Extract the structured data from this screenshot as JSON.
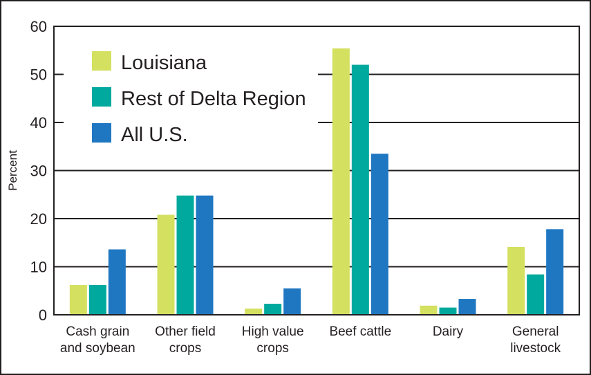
{
  "chart_data": {
    "type": "bar",
    "title": "",
    "xlabel": "",
    "ylabel": "Percent",
    "ylim": [
      0,
      60
    ],
    "yticks": [
      "0",
      "10",
      "20",
      "30",
      "40",
      "50",
      "60"
    ],
    "grid": true,
    "legend_position": "top-left",
    "categories": [
      [
        "Cash grain",
        "and soybean"
      ],
      [
        "Other field",
        "crops"
      ],
      [
        "High value",
        "crops"
      ],
      [
        "Beef cattle"
      ],
      [
        "Dairy"
      ],
      [
        "General",
        "livestock"
      ]
    ],
    "series": [
      {
        "name": "Louisiana",
        "color": "#d4e060",
        "values": [
          6.2,
          20.8,
          1.3,
          55.4,
          1.9,
          14.1
        ]
      },
      {
        "name": "Rest of Delta Region",
        "color": "#00a99d",
        "values": [
          6.2,
          24.8,
          2.3,
          52.0,
          1.5,
          8.4
        ]
      },
      {
        "name": "All U.S.",
        "color": "#1f77c2",
        "values": [
          13.6,
          24.8,
          5.5,
          33.5,
          3.3,
          17.8
        ]
      }
    ]
  }
}
